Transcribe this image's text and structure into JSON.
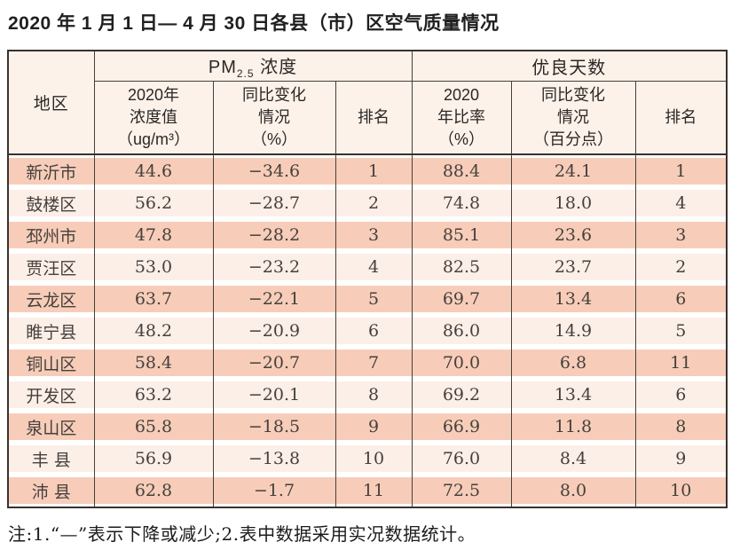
{
  "title": "2020 年 1 月 1 日— 4 月 30 日各县（市）区空气质量情况",
  "table": {
    "header": {
      "region": "地区",
      "pm_prefix": "PM",
      "pm_sub": "2.5",
      "pm_suffix": " 浓度",
      "good_days": "优良天数",
      "sub": {
        "pm_value": "2020年\n浓度值\n（ug/m³）",
        "pm_change": "同比变化\n情况\n（%）",
        "pm_rank": "排名",
        "gd_rate": "2020\n年比率\n（%）",
        "gd_change": "同比变化\n情况\n（百分点）",
        "gd_rank": "排名"
      }
    },
    "rows": [
      {
        "region": "新沂市",
        "pm_value": "44.6",
        "pm_change": "−34.6",
        "pm_rank": "1",
        "gd_rate": "88.4",
        "gd_change": "24.1",
        "gd_rank": "1"
      },
      {
        "region": "鼓楼区",
        "pm_value": "56.2",
        "pm_change": "−28.7",
        "pm_rank": "2",
        "gd_rate": "74.8",
        "gd_change": "18.0",
        "gd_rank": "4"
      },
      {
        "region": "邳州市",
        "pm_value": "47.8",
        "pm_change": "−28.2",
        "pm_rank": "3",
        "gd_rate": "85.1",
        "gd_change": "23.6",
        "gd_rank": "3"
      },
      {
        "region": "贾汪区",
        "pm_value": "53.0",
        "pm_change": "−23.2",
        "pm_rank": "4",
        "gd_rate": "82.5",
        "gd_change": "23.7",
        "gd_rank": "2"
      },
      {
        "region": "云龙区",
        "pm_value": "63.7",
        "pm_change": "−22.1",
        "pm_rank": "5",
        "gd_rate": "69.7",
        "gd_change": "13.4",
        "gd_rank": "6"
      },
      {
        "region": "睢宁县",
        "pm_value": "48.2",
        "pm_change": "−20.9",
        "pm_rank": "6",
        "gd_rate": "86.0",
        "gd_change": "14.9",
        "gd_rank": "5"
      },
      {
        "region": "铜山区",
        "pm_value": "58.4",
        "pm_change": "−20.7",
        "pm_rank": "7",
        "gd_rate": "70.0",
        "gd_change": "6.8",
        "gd_rank": "11"
      },
      {
        "region": "开发区",
        "pm_value": "63.2",
        "pm_change": "−20.1",
        "pm_rank": "8",
        "gd_rate": "69.2",
        "gd_change": "13.4",
        "gd_rank": "6"
      },
      {
        "region": "泉山区",
        "pm_value": "65.8",
        "pm_change": "−18.5",
        "pm_rank": "9",
        "gd_rate": "66.9",
        "gd_change": "11.8",
        "gd_rank": "8"
      },
      {
        "region": "丰 县",
        "pm_value": "56.9",
        "pm_change": "−13.8",
        "pm_rank": "10",
        "gd_rate": "76.0",
        "gd_change": "8.4",
        "gd_rank": "9"
      },
      {
        "region": "沛 县",
        "pm_value": "62.8",
        "pm_change": "−1.7",
        "pm_rank": "11",
        "gd_rate": "72.5",
        "gd_change": "8.0",
        "gd_rank": "10"
      }
    ]
  },
  "note": "注:1.“—”表示下降或减少;2.表中数据采用实况数据统计。",
  "colors": {
    "band_dark": "#f7cdb9",
    "band_light": "#fcefe8",
    "header_bg": "#fdf2ea",
    "border_dark": "#38322e"
  }
}
